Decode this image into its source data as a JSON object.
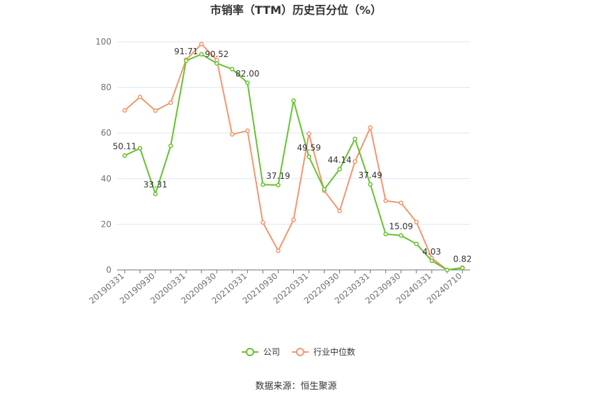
{
  "chart_data": {
    "type": "line",
    "title": "市销率（TTM）历史百分位（%）",
    "source": "数据来源：恒生聚源",
    "ylim": [
      0,
      100
    ],
    "y_ticks": [
      "0",
      "20",
      "40",
      "60",
      "80",
      "100"
    ],
    "x_tick_labels": [
      "20190331",
      "20190930",
      "20200331",
      "20200930",
      "20210331",
      "20210930",
      "20220331",
      "20220930",
      "20230331",
      "20230930",
      "20240331",
      "20240710"
    ],
    "grid": true,
    "legend_position": "bottom",
    "series": [
      {
        "name": "公司",
        "color": "#62c32c",
        "values": [
          50.11,
          53.3,
          33.31,
          54.4,
          91.71,
          94.5,
          90.52,
          88.0,
          82.0,
          37.4,
          37.19,
          74.2,
          49.59,
          35.3,
          44.14,
          57.4,
          37.49,
          15.7,
          15.09,
          11.4,
          4.03,
          0.0,
          0.82
        ],
        "labels": {
          "0": "50.11",
          "2": "33.31",
          "4": "91.71",
          "6": "90.52",
          "8": "82.00",
          "10": "37.19",
          "12": "49.59",
          "14": "44.14",
          "16": "37.49",
          "18": "15.09",
          "20": "4.03",
          "22": "0.82"
        }
      },
      {
        "name": "行业中位数",
        "color": "#f3956b",
        "values": [
          69.9,
          75.8,
          69.8,
          73.3,
          92.1,
          99.0,
          92.0,
          59.4,
          61.0,
          20.8,
          8.4,
          22.0,
          59.7,
          34.7,
          25.8,
          47.5,
          62.4,
          30.3,
          29.4,
          21.0,
          5.2,
          0.0,
          1.0
        ]
      }
    ]
  }
}
